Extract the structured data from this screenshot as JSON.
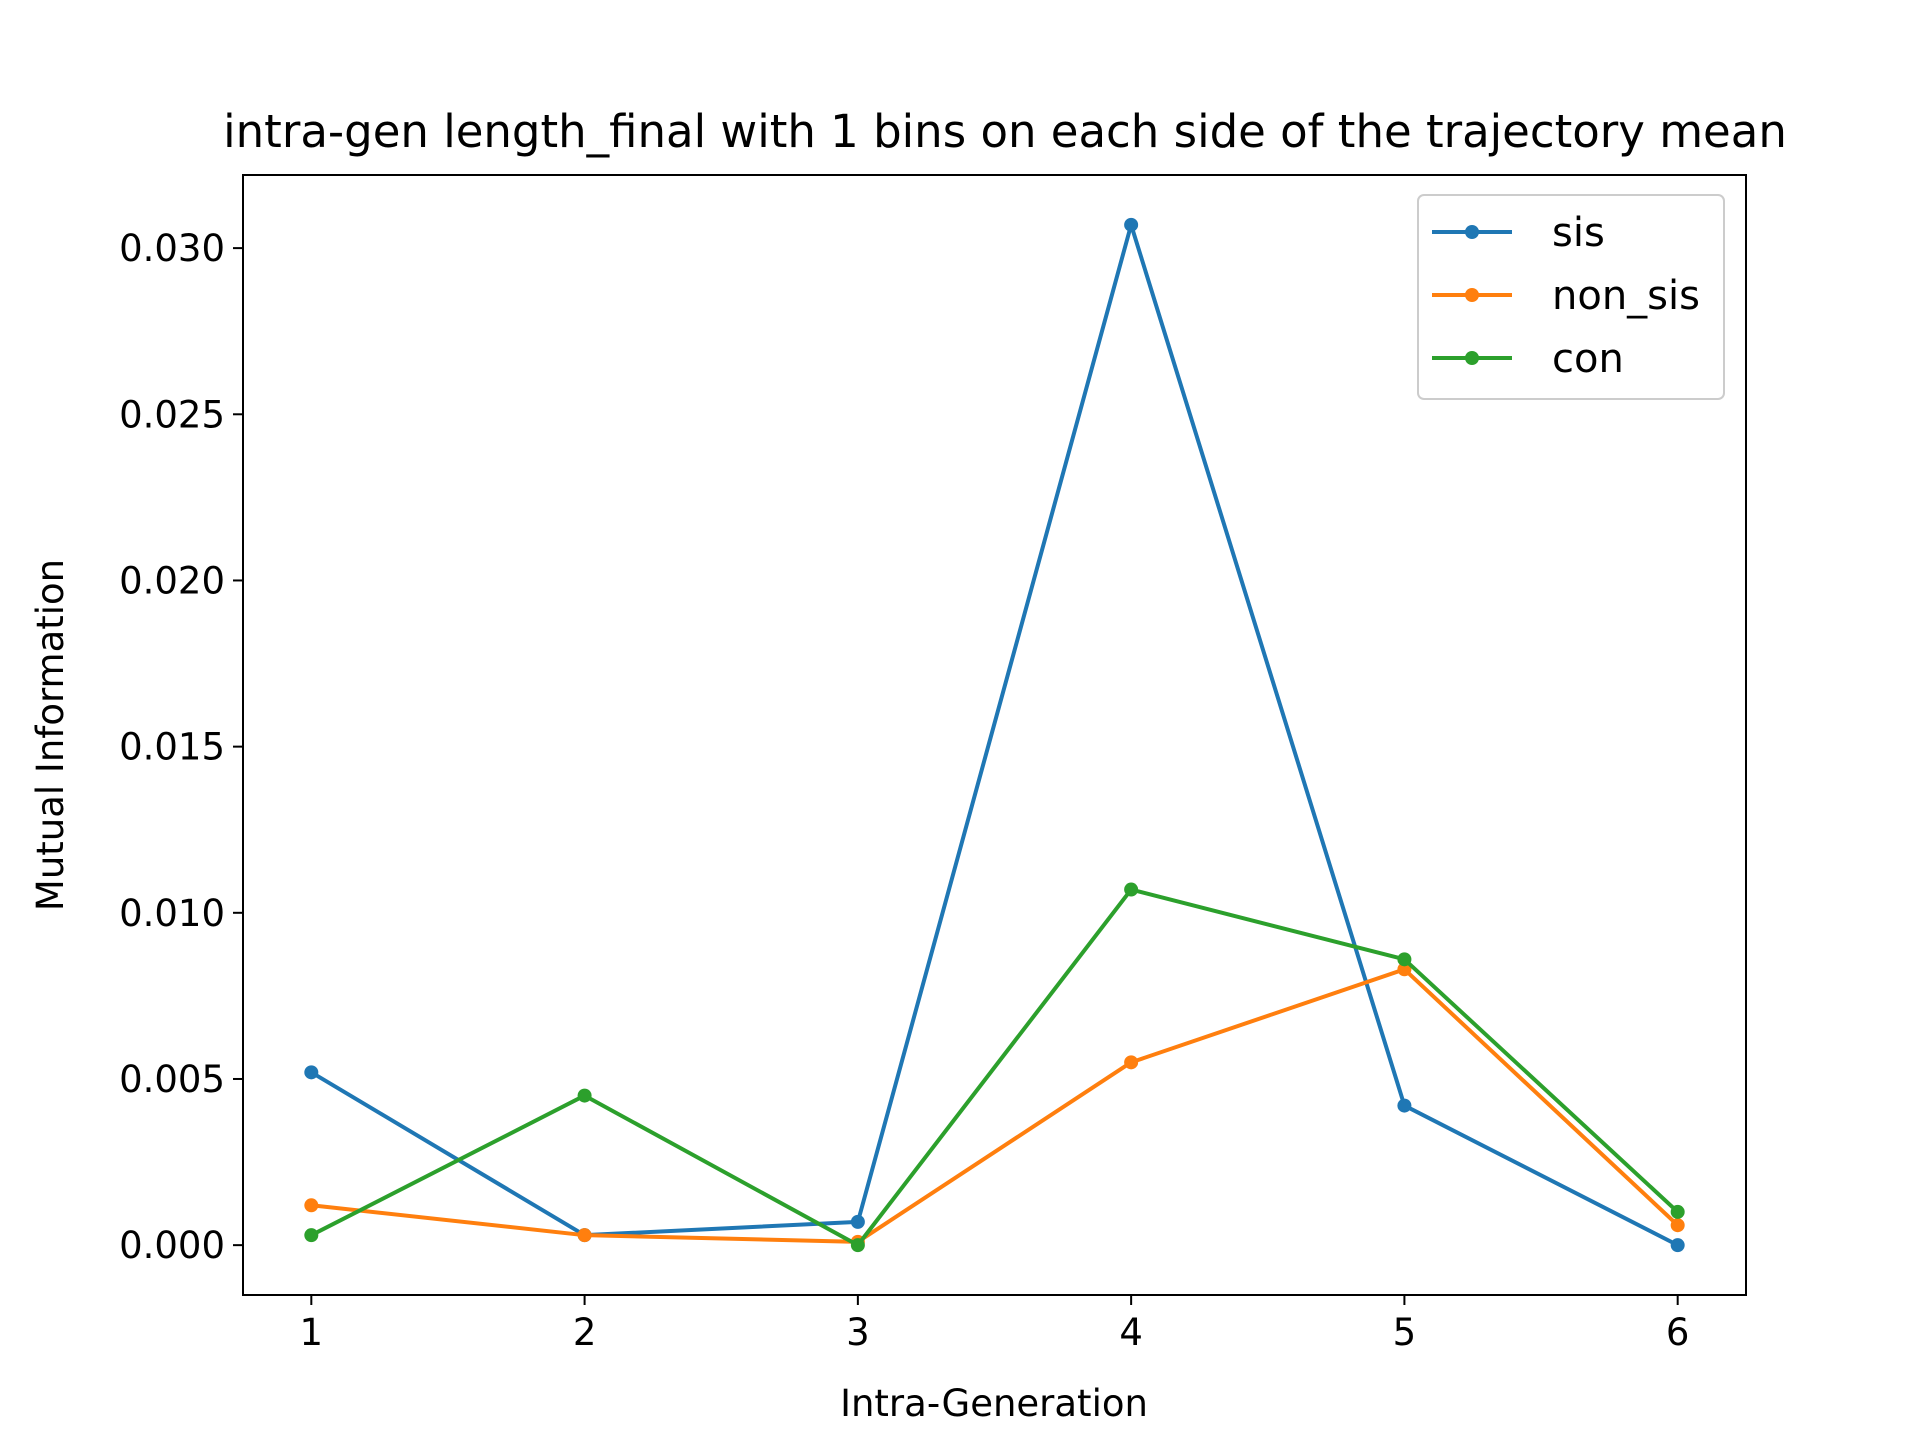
{
  "chart_data": {
    "type": "line",
    "title": "intra-gen length_final with 1 bins on each side of the trajectory mean",
    "xlabel": "Intra-Generation",
    "ylabel": "Mutual Information",
    "x": [
      1,
      2,
      3,
      4,
      5,
      6
    ],
    "xticks": [
      "1",
      "2",
      "3",
      "4",
      "5",
      "6"
    ],
    "xlim": [
      0.75,
      6.25
    ],
    "yticks": [
      "0.000",
      "0.005",
      "0.010",
      "0.015",
      "0.020",
      "0.025",
      "0.030"
    ],
    "ylim": [
      -0.0015,
      0.0322
    ],
    "grid": false,
    "legend_position": "top-right",
    "series": [
      {
        "name": "sis",
        "color": "#1f77b4",
        "values": [
          0.0052,
          0.0003,
          0.0007,
          0.0307,
          0.0042,
          0.0
        ]
      },
      {
        "name": "non_sis",
        "color": "#ff7f0e",
        "values": [
          0.0012,
          0.0003,
          0.0001,
          0.0055,
          0.0083,
          0.0006
        ]
      },
      {
        "name": "con",
        "color": "#2ca02c",
        "values": [
          0.0003,
          0.0045,
          0.0,
          0.0107,
          0.0086,
          0.001
        ]
      }
    ]
  }
}
